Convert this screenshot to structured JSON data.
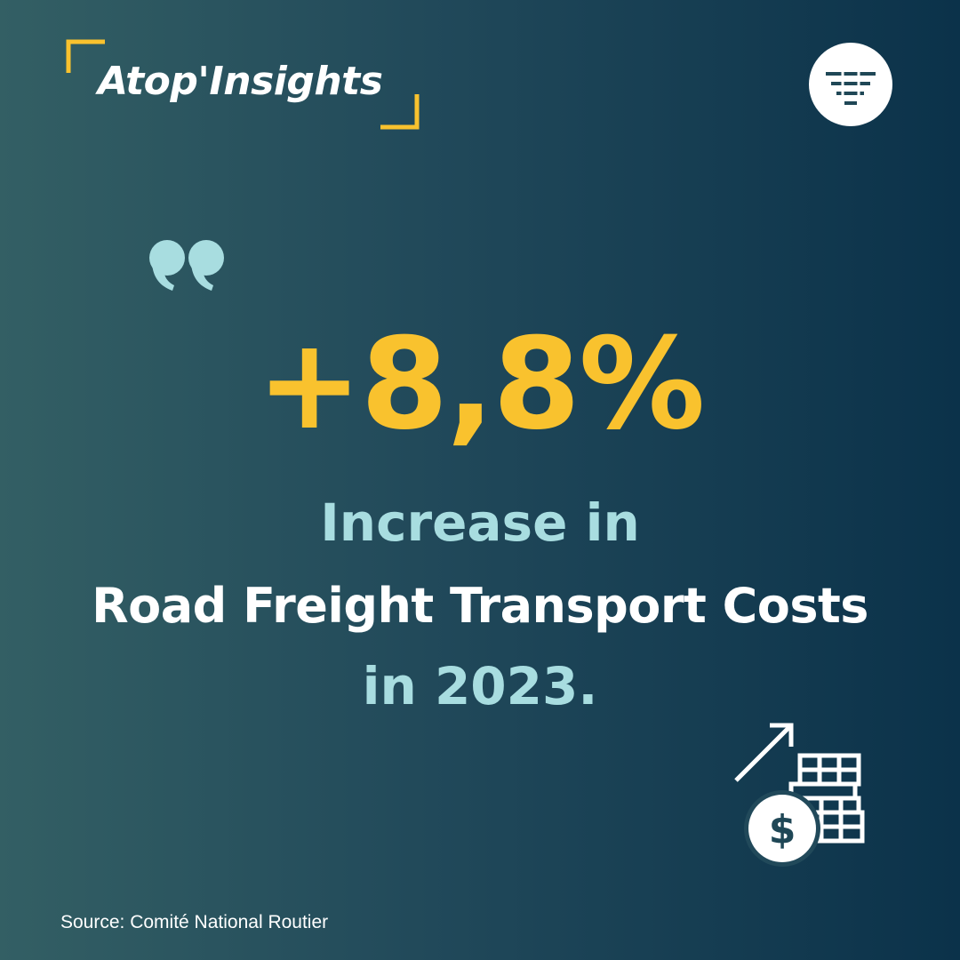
{
  "brand": {
    "name": "Atop'Insights"
  },
  "colors": {
    "accent_yellow": "#f9c22e",
    "light_teal": "#a8dde0",
    "white": "#ffffff",
    "bg_left": "#335f64",
    "bg_right": "#0b324a"
  },
  "icons": {
    "logo": "funnel-lines-icon",
    "quote": "quote-mark-icon",
    "cost": "coins-rising-cost-icon"
  },
  "headline": {
    "stat": "+8,8%",
    "line1": "Increase in",
    "line2": "Road Freight Transport Costs",
    "line3": "in 2023."
  },
  "footer": {
    "source": "Source: Comité National Routier"
  }
}
